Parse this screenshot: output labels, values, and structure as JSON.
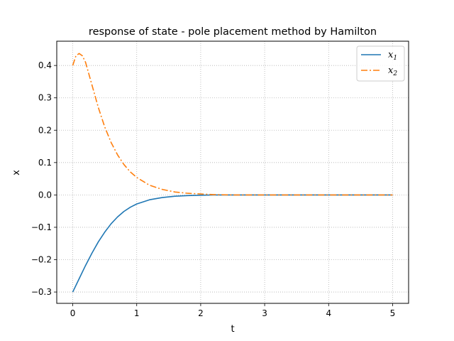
{
  "chart_data": {
    "type": "line",
    "title": "response of state - pole placement method by Hamilton",
    "xlabel": "t",
    "ylabel": "x",
    "xlim": [
      -0.25,
      5.25
    ],
    "ylim": [
      -0.335,
      0.475
    ],
    "xticks": [
      0,
      1,
      2,
      3,
      4,
      5
    ],
    "xtick_labels": [
      "0",
      "1",
      "2",
      "3",
      "4",
      "5"
    ],
    "yticks": [
      -0.3,
      -0.2,
      -0.1,
      0.0,
      0.1,
      0.2,
      0.3,
      0.4
    ],
    "ytick_labels": [
      "−0.3",
      "−0.2",
      "−0.1",
      "0.0",
      "0.1",
      "0.2",
      "0.3",
      "0.4"
    ],
    "grid": true,
    "legend_position": "top-right",
    "series": [
      {
        "name": "x",
        "name_sub": "1",
        "color": "#1f77b4",
        "style": "solid",
        "x": [
          0,
          0.1,
          0.2,
          0.3,
          0.4,
          0.5,
          0.6,
          0.7,
          0.8,
          0.9,
          1.0,
          1.2,
          1.4,
          1.6,
          1.8,
          2.0,
          2.2,
          2.5,
          3.0,
          3.5,
          4.0,
          4.5,
          5.0
        ],
        "y": [
          -0.3,
          -0.259,
          -0.218,
          -0.18,
          -0.145,
          -0.115,
          -0.089,
          -0.068,
          -0.051,
          -0.038,
          -0.028,
          -0.015,
          -0.008,
          -0.004,
          -0.002,
          -0.001,
          0.0,
          0.0,
          0.0,
          0.0,
          0.0,
          0.0,
          0.0
        ]
      },
      {
        "name": "x",
        "name_sub": "2",
        "color": "#ff7f0e",
        "style": "dashdot",
        "x": [
          0,
          0.05,
          0.1,
          0.15,
          0.2,
          0.3,
          0.4,
          0.5,
          0.6,
          0.7,
          0.8,
          0.9,
          1.0,
          1.2,
          1.4,
          1.6,
          1.8,
          2.0,
          2.2,
          2.5,
          3.0,
          3.5,
          4.0,
          4.5,
          5.0
        ],
        "y": [
          0.4,
          0.43,
          0.437,
          0.43,
          0.41,
          0.34,
          0.27,
          0.21,
          0.162,
          0.124,
          0.094,
          0.071,
          0.054,
          0.03,
          0.017,
          0.009,
          0.005,
          0.003,
          0.001,
          0.0,
          0.0,
          0.0,
          0.0,
          0.0,
          0.0
        ]
      }
    ]
  }
}
